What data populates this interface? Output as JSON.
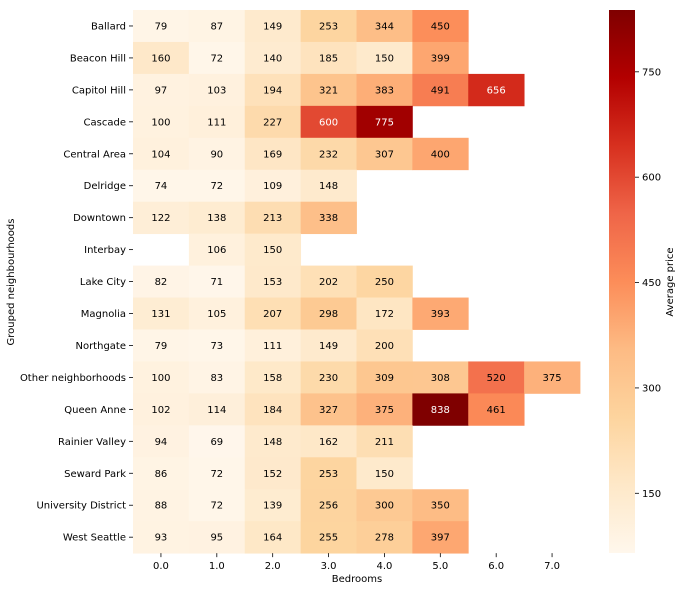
{
  "chart_data": {
    "type": "heatmap",
    "xlabel": "Bedrooms",
    "ylabel": "Grouped neighbourhoods",
    "colorbar_label": "Average price",
    "colormap": "OrRd",
    "color_range": [
      65,
      838
    ],
    "colorbar_ticks": [
      150,
      300,
      450,
      600,
      750
    ],
    "x_categories": [
      "0.0",
      "1.0",
      "2.0",
      "3.0",
      "4.0",
      "5.0",
      "6.0",
      "7.0"
    ],
    "y_categories": [
      "Ballard",
      "Beacon Hill",
      "Capitol Hill",
      "Cascade",
      "Central Area",
      "Delridge",
      "Downtown",
      "Interbay",
      "Lake City",
      "Magnolia",
      "Northgate",
      "Other neighborhoods",
      "Queen Anne",
      "Rainier Valley",
      "Seward Park",
      "University District",
      "West Seattle"
    ],
    "values": [
      [
        79,
        87,
        149,
        253,
        344,
        450,
        null,
        null
      ],
      [
        160,
        72,
        140,
        185,
        150,
        399,
        null,
        null
      ],
      [
        97,
        103,
        194,
        321,
        383,
        491,
        656,
        null
      ],
      [
        100,
        111,
        227,
        600,
        775,
        null,
        null,
        null
      ],
      [
        104,
        90,
        169,
        232,
        307,
        400,
        null,
        null
      ],
      [
        74,
        72,
        109,
        148,
        null,
        null,
        null,
        null
      ],
      [
        122,
        138,
        213,
        338,
        null,
        null,
        null,
        null
      ],
      [
        null,
        106,
        150,
        null,
        null,
        null,
        null,
        null
      ],
      [
        82,
        71,
        153,
        202,
        250,
        null,
        null,
        null
      ],
      [
        131,
        105,
        207,
        298,
        172,
        393,
        null,
        null
      ],
      [
        79,
        73,
        111,
        149,
        200,
        null,
        null,
        null
      ],
      [
        100,
        83,
        158,
        230,
        309,
        308,
        520,
        375
      ],
      [
        102,
        114,
        184,
        327,
        375,
        838,
        461,
        null
      ],
      [
        94,
        69,
        148,
        162,
        211,
        null,
        null,
        null
      ],
      [
        86,
        72,
        152,
        253,
        150,
        null,
        null,
        null
      ],
      [
        88,
        72,
        139,
        256,
        300,
        350,
        null,
        null
      ],
      [
        93,
        95,
        164,
        255,
        278,
        397,
        null,
        null
      ]
    ]
  }
}
